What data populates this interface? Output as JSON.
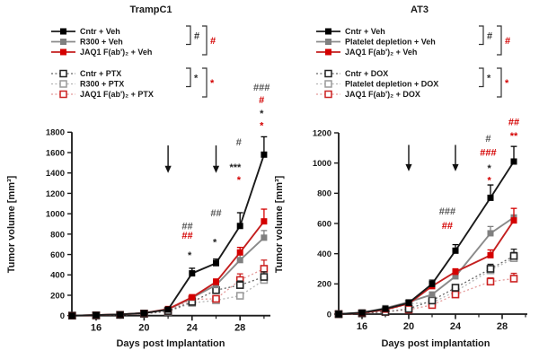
{
  "figure": {
    "background": "#ffffff",
    "accent_red": "#d40000",
    "accent_gray": "#808080",
    "accent_black": "#000000"
  },
  "chart_data": [
    {
      "type": "line",
      "title": "TrampC1",
      "xlabel": "Days post Implantation",
      "ylabel": "Tumor volume [mm³]",
      "x": [
        14,
        16,
        18,
        20,
        22,
        24,
        26,
        28,
        30
      ],
      "xticks_major": [
        16,
        20,
        24,
        28
      ],
      "xticks_minor": [
        14,
        18,
        22,
        26,
        30
      ],
      "ylim": [
        0,
        1800
      ],
      "ytick_step": 200,
      "grid": false,
      "legend_position": "top-left",
      "series": [
        {
          "name": "Cntr + Veh",
          "style": "solid",
          "color": "#000000",
          "line_color": "#1a1a1a",
          "values": [
            0,
            5,
            12,
            25,
            60,
            415,
            515,
            880,
            1580
          ],
          "err": [
            0,
            0,
            0,
            0,
            15,
            50,
            40,
            130,
            175
          ]
        },
        {
          "name": "R300 + Veh",
          "style": "solid",
          "color": "#808080",
          "line_color": "#8a8a8a",
          "values": [
            0,
            5,
            12,
            25,
            60,
            175,
            300,
            545,
            765
          ],
          "err": [
            0,
            0,
            0,
            0,
            10,
            20,
            25,
            55,
            70
          ]
        },
        {
          "name": "JAQ1 F(ab')₂ + Veh",
          "style": "solid",
          "color": "#d40000",
          "line_color": "#c41f1f",
          "values": [
            0,
            5,
            12,
            25,
            65,
            180,
            330,
            620,
            925
          ],
          "err": [
            0,
            0,
            0,
            0,
            15,
            25,
            30,
            50,
            120
          ]
        },
        {
          "name": "Cntr + PTX",
          "style": "open",
          "color": "#222222",
          "line_color": "#666666",
          "values": [
            0,
            3,
            8,
            20,
            45,
            135,
            250,
            300,
            380
          ],
          "err": [
            0,
            0,
            0,
            0,
            0,
            20,
            30,
            40,
            50
          ]
        },
        {
          "name": "R300 + PTX",
          "style": "open",
          "color": "#9a9a9a",
          "line_color": "#b5b5b5",
          "values": [
            0,
            3,
            8,
            18,
            40,
            125,
            150,
            195,
            350
          ],
          "err": [
            0,
            0,
            0,
            0,
            0,
            15,
            20,
            25,
            40
          ]
        },
        {
          "name": "JAQ1 F(ab')₂ + PTX",
          "style": "open",
          "color": "#cc2222",
          "line_color": "#e49a9a",
          "values": [
            0,
            3,
            8,
            20,
            45,
            160,
            165,
            350,
            460
          ],
          "err": [
            0,
            0,
            0,
            0,
            0,
            25,
            20,
            60,
            85
          ]
        }
      ],
      "treatment_arrows": {
        "days": [
          22,
          26
        ],
        "value_from": 1670,
        "value_to": 1400
      },
      "annotations": [
        {
          "day": 23.6,
          "value": 880,
          "text": "##",
          "color": "#555555"
        },
        {
          "day": 23.6,
          "value": 785,
          "text": "##",
          "color": "#d40000"
        },
        {
          "day": 23.8,
          "value": 590,
          "text": "*",
          "color": "#222222"
        },
        {
          "day": 26.0,
          "value": 1005,
          "text": "##",
          "color": "#555555"
        },
        {
          "day": 25.9,
          "value": 720,
          "text": "*",
          "color": "#222222"
        },
        {
          "day": 27.9,
          "value": 1700,
          "text": "#",
          "color": "#555555"
        },
        {
          "day": 27.6,
          "value": 1455,
          "text": "***",
          "color": "#222222"
        },
        {
          "day": 27.9,
          "value": 1330,
          "text": "*",
          "color": "#d40000"
        },
        {
          "day": 29.8,
          "value": 2240,
          "text": "###",
          "color": "#555555"
        },
        {
          "day": 29.8,
          "value": 2115,
          "text": "#",
          "color": "#d40000"
        },
        {
          "day": 29.8,
          "value": 1985,
          "text": "*",
          "color": "#222222"
        },
        {
          "day": 29.8,
          "value": 1865,
          "text": "*",
          "color": "#d40000"
        }
      ],
      "legend_brackets": [
        {
          "rows": [
            0,
            1
          ],
          "tier": 0,
          "symbol": "#",
          "color": "#333333"
        },
        {
          "rows": [
            0,
            2
          ],
          "tier": 1,
          "symbol": "#",
          "color": "#d40000"
        },
        {
          "rows": [
            3,
            4
          ],
          "tier": 0,
          "symbol": "*",
          "color": "#333333"
        },
        {
          "rows": [
            3,
            5
          ],
          "tier": 1,
          "symbol": "*",
          "color": "#d40000"
        }
      ]
    },
    {
      "type": "line",
      "title": "AT3",
      "xlabel": "Days post implantation",
      "ylabel": "Tumor volume [mm³]",
      "x": [
        14,
        16,
        18,
        20,
        22,
        24,
        27,
        29
      ],
      "xticks_major": [
        16,
        20,
        24,
        28
      ],
      "xticks_minor": [
        14,
        18,
        22,
        26,
        30
      ],
      "ylim": [
        0,
        1200
      ],
      "ytick_step": 200,
      "grid": false,
      "legend_position": "top-left",
      "series": [
        {
          "name": "Cntr + Veh",
          "style": "solid",
          "color": "#000000",
          "line_color": "#1a1a1a",
          "values": [
            0,
            10,
            35,
            75,
            200,
            420,
            770,
            1010
          ],
          "err": [
            0,
            0,
            5,
            10,
            25,
            40,
            85,
            100
          ]
        },
        {
          "name": "Platelet depletion + Veh",
          "style": "solid",
          "color": "#808080",
          "line_color": "#8a8a8a",
          "values": [
            0,
            10,
            40,
            80,
            130,
            250,
            535,
            640
          ],
          "err": [
            0,
            0,
            5,
            10,
            15,
            25,
            45,
            0
          ]
        },
        {
          "name": "JAQ1 F(ab')₂ + Veh",
          "style": "solid",
          "color": "#d40000",
          "line_color": "#c41f1f",
          "values": [
            0,
            8,
            30,
            70,
            185,
            280,
            390,
            620
          ],
          "err": [
            0,
            0,
            5,
            10,
            20,
            20,
            35,
            80
          ]
        },
        {
          "name": "Cntr + DOX",
          "style": "open",
          "color": "#222222",
          "line_color": "#666666",
          "values": [
            0,
            5,
            15,
            35,
            90,
            175,
            300,
            385
          ],
          "err": [
            0,
            0,
            0,
            5,
            15,
            20,
            30,
            45
          ]
        },
        {
          "name": "Platelet depletion + DOX",
          "style": "open",
          "color": "#9a9a9a",
          "line_color": "#b5b5b5",
          "values": [
            0,
            5,
            20,
            70,
            75,
            150,
            290,
            370
          ],
          "err": [
            0,
            0,
            0,
            10,
            10,
            15,
            25,
            40
          ]
        },
        {
          "name": "JAQ1 F(ab')₂ + DOX",
          "style": "open",
          "color": "#cc2222",
          "line_color": "#e49a9a",
          "values": [
            0,
            5,
            15,
            30,
            60,
            130,
            215,
            235
          ],
          "err": [
            0,
            0,
            0,
            5,
            10,
            15,
            25,
            35
          ]
        }
      ],
      "treatment_arrows": {
        "days": [
          20,
          24
        ],
        "value_from": 1120,
        "value_to": 945
      },
      "annotations": [
        {
          "day": 23.3,
          "value": 680,
          "text": "###",
          "color": "#555555"
        },
        {
          "day": 23.3,
          "value": 585,
          "text": "##",
          "color": "#d40000"
        },
        {
          "day": 26.8,
          "value": 1160,
          "text": "#",
          "color": "#555555"
        },
        {
          "day": 26.8,
          "value": 1070,
          "text": "###",
          "color": "#d40000"
        },
        {
          "day": 26.9,
          "value": 965,
          "text": "*",
          "color": "#222222"
        },
        {
          "day": 26.9,
          "value": 885,
          "text": "*",
          "color": "#d40000"
        },
        {
          "day": 29.0,
          "value": 1270,
          "text": "##",
          "color": "#d40000"
        },
        {
          "day": 29.0,
          "value": 1180,
          "text": "**",
          "color": "#d40000"
        }
      ],
      "legend_brackets": [
        {
          "rows": [
            0,
            1
          ],
          "tier": 0,
          "symbol": "#",
          "color": "#333333"
        },
        {
          "rows": [
            0,
            2
          ],
          "tier": 1,
          "symbol": "#",
          "color": "#d40000"
        },
        {
          "rows": [
            3,
            4
          ],
          "tier": 0,
          "symbol": "*",
          "color": "#333333"
        },
        {
          "rows": [
            3,
            5
          ],
          "tier": 1,
          "symbol": "*",
          "color": "#d40000"
        }
      ]
    }
  ]
}
